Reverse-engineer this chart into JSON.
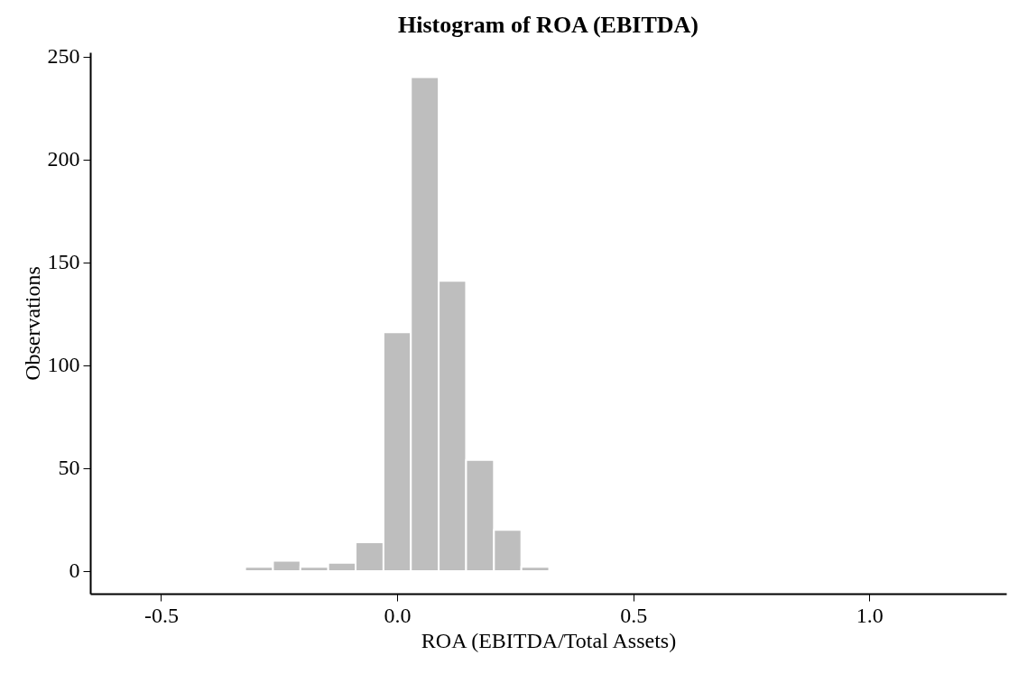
{
  "chart_data": {
    "type": "histogram",
    "title": "Histogram of ROA (EBITDA)",
    "xlabel": "ROA (EBITDA/Total Assets)",
    "ylabel": "Observations",
    "bins": [
      -0.322,
      -0.263,
      -0.205,
      -0.146,
      -0.088,
      -0.029,
      0.029,
      0.088,
      0.146,
      0.205,
      0.263,
      0.322
    ],
    "values": [
      2,
      5,
      2,
      4,
      14,
      116,
      240,
      141,
      54,
      20,
      2
    ],
    "color": "#bebebe",
    "xlim": [
      -0.65,
      1.29
    ],
    "xticks": [
      {
        "value": -0.5,
        "label": "-0.5"
      },
      {
        "value": 0,
        "label": "0.0"
      },
      {
        "value": 0.5,
        "label": "0.5"
      },
      {
        "value": 1,
        "label": "1.0"
      }
    ],
    "ylim": [
      -11,
      252
    ],
    "yticks": [
      0,
      50,
      100,
      150,
      200,
      250
    ],
    "grid": false
  }
}
